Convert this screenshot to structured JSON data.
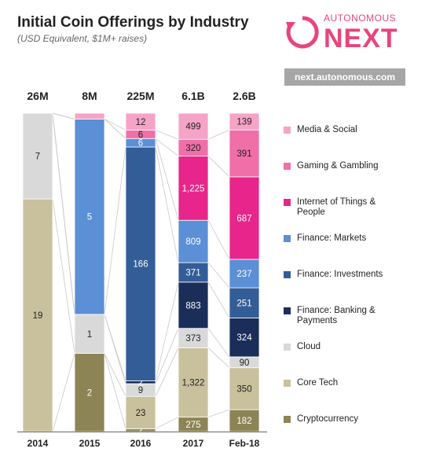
{
  "header": {
    "title": "Initial Coin Offerings by Industry",
    "subtitle": "(USD Equivalent, $1M+ raises)"
  },
  "logo": {
    "top_text": "AUTONOMOUS",
    "main_text": "NEXT",
    "url": "next.autonomous.com"
  },
  "colors": {
    "brand": "#e8457a",
    "media": "#f5a3c7",
    "gaming": "#f06fa8",
    "iot": "#e8258a",
    "markets": "#5b8fd6",
    "investments": "#335d96",
    "banking": "#1b2e5a",
    "cloud": "#d9d9d9",
    "coretech": "#c9c19d",
    "crypto": "#8c8455"
  },
  "chart_data": {
    "type": "bar",
    "stacked": "100%",
    "categories": [
      "2014",
      "2015",
      "2016",
      "2017",
      "Feb-18"
    ],
    "totals": [
      "26M",
      "8M",
      "225M",
      "6.1B",
      "2.6B"
    ],
    "series": [
      {
        "name": "Cryptocurrency",
        "color_key": "crypto",
        "values": [
          0,
          2,
          2,
          275,
          182
        ],
        "labels": [
          "",
          "2",
          "2",
          "275",
          "182"
        ]
      },
      {
        "name": "Core Tech",
        "color_key": "coretech",
        "values": [
          19,
          0,
          23,
          1322,
          350
        ],
        "labels": [
          "19",
          "",
          "23",
          "1,322",
          "350"
        ]
      },
      {
        "name": "Cloud",
        "color_key": "cloud",
        "values": [
          7,
          1,
          9,
          373,
          90
        ],
        "labels": [
          "7",
          "1",
          "9",
          "373",
          "90"
        ]
      },
      {
        "name": "Finance: Banking & Payments",
        "color_key": "banking",
        "values": [
          0,
          0,
          2,
          883,
          324
        ],
        "labels": [
          "",
          "",
          "2",
          "883",
          "324"
        ]
      },
      {
        "name": "Finance: Investments",
        "color_key": "investments",
        "values": [
          0,
          0,
          166,
          371,
          251
        ],
        "labels": [
          "",
          "",
          "166",
          "371",
          "251"
        ]
      },
      {
        "name": "Finance: Markets",
        "color_key": "markets",
        "values": [
          0,
          5,
          6,
          809,
          237
        ],
        "labels": [
          "",
          "5",
          "6",
          "809",
          "237"
        ]
      },
      {
        "name": "Internet of Things & People",
        "color_key": "iot",
        "values": [
          0,
          0,
          0,
          1225,
          687
        ],
        "labels": [
          "",
          "",
          "",
          "1,225",
          "687"
        ]
      },
      {
        "name": "Gaming & Gambling",
        "color_key": "gaming",
        "values": [
          0,
          0,
          6,
          320,
          391
        ],
        "labels": [
          "",
          "",
          "6",
          "320",
          "391"
        ]
      },
      {
        "name": "Media & Social",
        "color_key": "media",
        "values": [
          0,
          0.15,
          12,
          499,
          139
        ],
        "labels": [
          "",
          "",
          "12",
          "499",
          "139"
        ]
      }
    ],
    "legend_position": "right",
    "legend_order": [
      "Media & Social",
      "Gaming & Gambling",
      "Internet of Things & People",
      "Finance: Markets",
      "Finance: Investments",
      "Finance: Banking & Payments",
      "Cloud",
      "Core Tech",
      "Cryptocurrency"
    ],
    "grid": false
  }
}
